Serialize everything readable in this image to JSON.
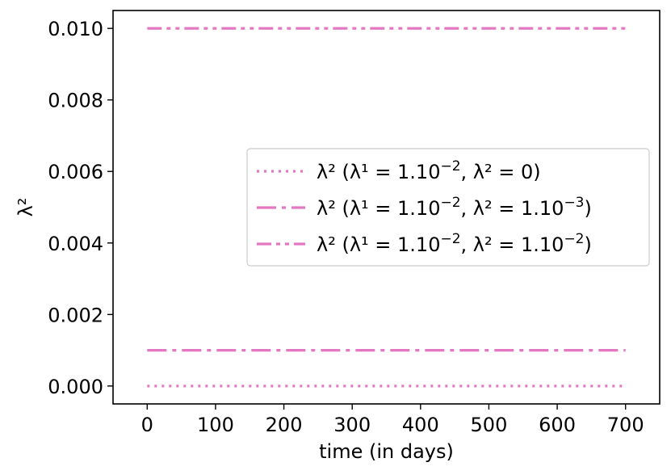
{
  "chart_data": {
    "type": "line",
    "title": "",
    "xlabel": "time (in days)",
    "ylabel": "λ²",
    "xlim": [
      -50,
      750
    ],
    "ylim": [
      -0.0005,
      0.0105
    ],
    "xticks": [
      0,
      100,
      200,
      300,
      400,
      500,
      600,
      700
    ],
    "xtick_labels": [
      "0",
      "100",
      "200",
      "300",
      "400",
      "500",
      "600",
      "700"
    ],
    "yticks": [
      0.0,
      0.002,
      0.004,
      0.006,
      0.008,
      0.01
    ],
    "ytick_labels": [
      "0.000",
      "0.002",
      "0.004",
      "0.006",
      "0.008",
      "0.010"
    ],
    "grid": false,
    "legend_position": "center-right",
    "color": "#e377c2",
    "series": [
      {
        "legend": {
          "prefix": "λ² (",
          "l1": "λ¹ = 1.10",
          "l1exp": "−2",
          "sep": ", ",
          "l2": "λ² = 0",
          "l2exp": "",
          "suffix": ")"
        },
        "style": "dotted",
        "x": [
          0,
          700
        ],
        "y": [
          0.0,
          0.0
        ]
      },
      {
        "legend": {
          "prefix": "λ² (",
          "l1": "λ¹ = 1.10",
          "l1exp": "−2",
          "sep": ", ",
          "l2": "λ² = 1.10",
          "l2exp": "−3",
          "suffix": ")"
        },
        "style": "dashdot",
        "x": [
          0,
          700
        ],
        "y": [
          0.001,
          0.001
        ]
      },
      {
        "legend": {
          "prefix": "λ² (",
          "l1": "λ¹ = 1.10",
          "l1exp": "−2",
          "sep": ", ",
          "l2": "λ² = 1.10",
          "l2exp": "−2",
          "suffix": ")"
        },
        "style": "dashdotdot",
        "x": [
          0,
          700
        ],
        "y": [
          0.01,
          0.01
        ]
      }
    ]
  }
}
